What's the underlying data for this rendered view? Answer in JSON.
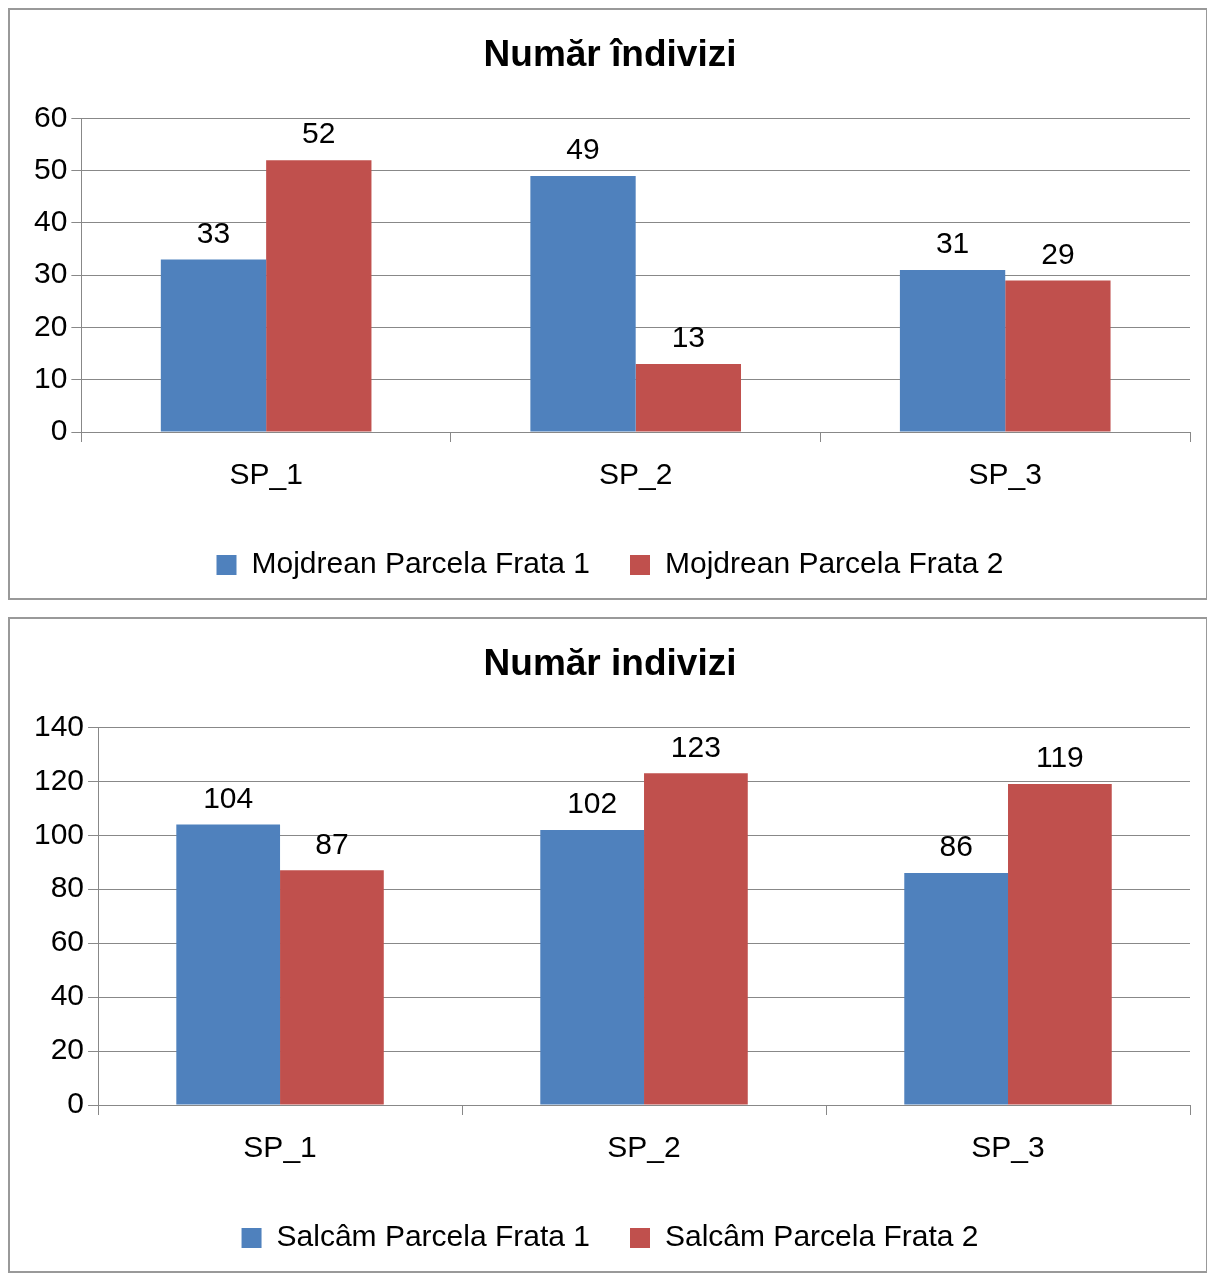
{
  "chart_data": [
    {
      "type": "bar",
      "title": "Număr îndivizi",
      "categories": [
        "SP_1",
        "SP_2",
        "SP_3"
      ],
      "series": [
        {
          "name": "Mojdrean Parcela Frata 1",
          "color": "#4f81bd",
          "values": [
            33,
            49,
            31
          ]
        },
        {
          "name": "Mojdrean Parcela Frata 2",
          "color": "#c0504d",
          "values": [
            52,
            13,
            29
          ]
        }
      ],
      "ylim": [
        0,
        60
      ],
      "yticks": [
        0,
        10,
        20,
        30,
        40,
        50,
        60
      ],
      "grid": "y",
      "legend": "bottom",
      "data_labels": true
    },
    {
      "type": "bar",
      "title": "Număr indivizi",
      "categories": [
        "SP_1",
        "SP_2",
        "SP_3"
      ],
      "series": [
        {
          "name": "Salcâm Parcela Frata 1",
          "color": "#4f81bd",
          "values": [
            104,
            102,
            86
          ]
        },
        {
          "name": "Salcâm Parcela Frata 2",
          "color": "#c0504d",
          "values": [
            87,
            123,
            119
          ]
        }
      ],
      "ylim": [
        0,
        140
      ],
      "yticks": [
        0,
        20,
        40,
        60,
        80,
        100,
        120,
        140
      ],
      "grid": "y",
      "legend": "bottom",
      "data_labels": true
    }
  ]
}
